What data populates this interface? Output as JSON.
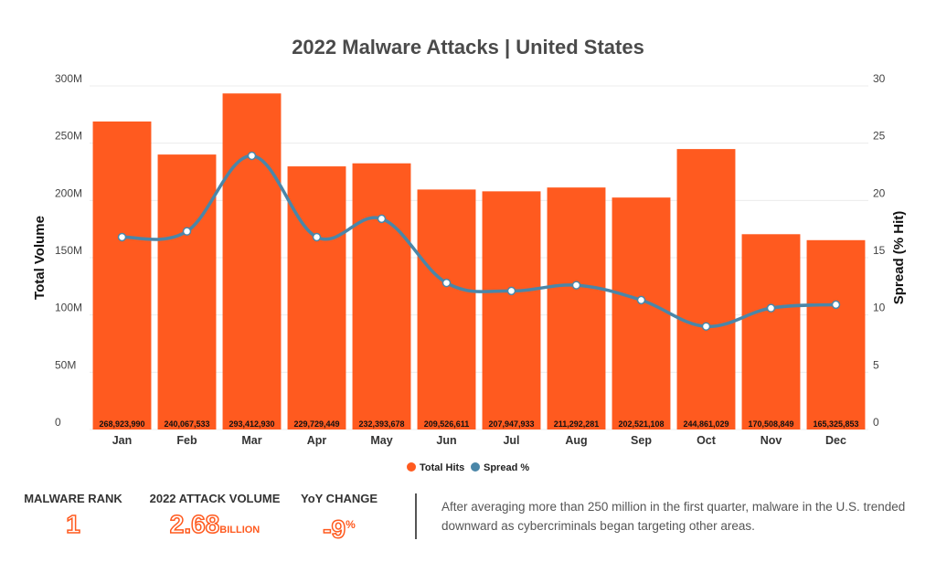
{
  "chart_data": {
    "type": "bar",
    "title": "2022 Malware Attacks | United States",
    "categories": [
      "Jan",
      "Feb",
      "Mar",
      "Apr",
      "May",
      "Jun",
      "Jul",
      "Aug",
      "Sep",
      "Oct",
      "Nov",
      "Dec"
    ],
    "series": [
      {
        "name": "Total Hits",
        "type": "bar",
        "axis": "left",
        "color": "#ff5a1f",
        "values": [
          268923990,
          240067533,
          293412930,
          229729449,
          232393678,
          209526611,
          207947933,
          211292281,
          202521108,
          244861029,
          170508849,
          165325853
        ],
        "labels": [
          "268,923,990",
          "240,067,533",
          "293,412,930",
          "229,729,449",
          "232,393,678",
          "209,526,611",
          "207,947,933",
          "211,292,281",
          "202,521,108",
          "244,861,029",
          "170,508,849",
          "165,325,853"
        ]
      },
      {
        "name": "Spread %",
        "type": "line",
        "axis": "right",
        "color": "#4a86a8",
        "values": [
          16.8,
          17.3,
          23.9,
          16.8,
          18.4,
          12.8,
          12.1,
          12.6,
          11.3,
          9.0,
          10.6,
          10.9
        ]
      }
    ],
    "ylabel_left": "Total Volume",
    "ylabel_right": "Spread (% Hit)",
    "ylim_left": [
      0,
      300000000
    ],
    "ylim_right": [
      0,
      30
    ],
    "yticks_left": [
      "0",
      "50M",
      "100M",
      "150M",
      "200M",
      "250M",
      "300M"
    ],
    "yticks_right": [
      "0",
      "5",
      "10",
      "15",
      "20",
      "25",
      "30"
    ],
    "grid": true,
    "legend_position": "bottom"
  },
  "stats": [
    {
      "label": "MALWARE RANK",
      "value": "1",
      "unit": "",
      "sup": ""
    },
    {
      "label": "2022 ATTACK VOLUME",
      "value": "2.68",
      "unit": "BILLION",
      "sup": ""
    },
    {
      "label": "YoY CHANGE",
      "value": "-9",
      "unit": "",
      "sup": "%"
    }
  ],
  "summary": "After averaging more than 250 million in the first quarter, malware in the U.S. trended downward as cybercriminals began targeting other areas."
}
